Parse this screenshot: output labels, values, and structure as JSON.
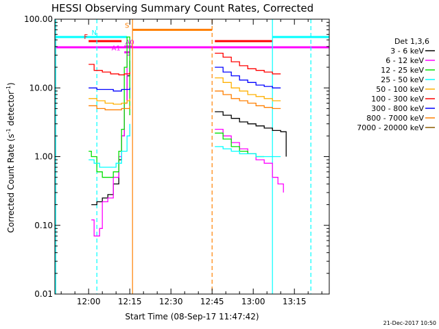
{
  "chart_data": {
    "type": "line",
    "title": "HESSI Observing Summary Count Rates, Corrected",
    "xlabel": "Start Time (08-Sep-17 11:47:42)",
    "ylabel_main": "Corrected Count Rate (s",
    "ylabel_sup1": "-1",
    "ylabel_mid": " detector",
    "ylabel_sup2": "-1",
    "ylabel_end": ")",
    "y_scale": "log",
    "ylim": [
      0.01,
      100
    ],
    "xlim": [
      "11:47:42",
      "13:27:42"
    ],
    "y_ticks": [
      "0.01",
      "0.10",
      "1.00",
      "10.00",
      "100.00"
    ],
    "x_ticks": [
      {
        "t": "12:00",
        "label": "12:00"
      },
      {
        "t": "12:15",
        "label": "12:15"
      },
      {
        "t": "12:30",
        "label": "12:30"
      },
      {
        "t": "12:45",
        "label": "12:45"
      },
      {
        "t": "13:00",
        "label": "13:00"
      },
      {
        "t": "13:15",
        "label": "13:15"
      }
    ],
    "legend_title": "Det 1,3,6",
    "legend_placement": "outside-right",
    "stamp": "21-Dec-2017 10:50",
    "series": [
      {
        "name": "3 - 6 keV",
        "color": "#000000",
        "seg1": [
          [
            "12:01",
            0.2
          ],
          [
            "12:03",
            0.22
          ],
          [
            "12:05",
            0.25
          ],
          [
            "12:07",
            0.28
          ],
          [
            "12:09",
            0.4
          ],
          [
            "12:11",
            0.9
          ],
          [
            "12:12",
            2.0
          ],
          [
            "12:13",
            6.0
          ],
          [
            "12:14",
            15.0
          ],
          [
            "12:15",
            25.0
          ]
        ],
        "seg2": [
          [
            "12:46",
            4.5
          ],
          [
            "12:49",
            4.0
          ],
          [
            "12:52",
            3.6
          ],
          [
            "12:55",
            3.2
          ],
          [
            "12:58",
            3.0
          ],
          [
            "13:01",
            2.8
          ],
          [
            "13:04",
            2.6
          ],
          [
            "13:07",
            2.4
          ],
          [
            "13:10",
            2.3
          ],
          [
            "13:12",
            1.0
          ]
        ]
      },
      {
        "name": "6 - 12 keV",
        "color": "#ff00ff",
        "seg1": [
          [
            "12:01",
            0.12
          ],
          [
            "12:02",
            0.07
          ],
          [
            "12:04",
            0.09
          ],
          [
            "12:05",
            0.22
          ],
          [
            "12:07",
            0.25
          ],
          [
            "12:09",
            0.5
          ],
          [
            "12:11",
            1.0
          ],
          [
            "12:12",
            2.0
          ],
          [
            "12:13",
            6.0
          ],
          [
            "12:14",
            30.0
          ],
          [
            "12:15",
            40.0
          ]
        ],
        "seg2": [
          [
            "12:46",
            2.5
          ],
          [
            "12:49",
            2.0
          ],
          [
            "12:52",
            1.6
          ],
          [
            "12:55",
            1.3
          ],
          [
            "12:58",
            1.1
          ],
          [
            "13:01",
            0.9
          ],
          [
            "13:04",
            0.8
          ],
          [
            "13:07",
            0.5
          ],
          [
            "13:09",
            0.4
          ],
          [
            "13:11",
            0.3
          ]
        ]
      },
      {
        "name": "12 - 25 keV",
        "color": "#00e000",
        "seg1": [
          [
            "12:00",
            1.2
          ],
          [
            "12:01",
            1.0
          ],
          [
            "12:03",
            0.6
          ],
          [
            "12:05",
            0.5
          ],
          [
            "12:07",
            0.5
          ],
          [
            "12:09",
            0.6
          ],
          [
            "12:11",
            1.2
          ],
          [
            "12:12",
            2.5
          ],
          [
            "12:13",
            20.0
          ],
          [
            "12:14",
            55.0
          ],
          [
            "12:15",
            4.0
          ]
        ],
        "seg2": [
          [
            "12:46",
            2.2
          ],
          [
            "12:49",
            1.8
          ],
          [
            "12:52",
            1.4
          ],
          [
            "12:55",
            1.2
          ],
          [
            "12:58",
            1.1
          ],
          [
            "13:01",
            1.0
          ],
          [
            "13:04",
            1.0
          ]
        ]
      },
      {
        "name": "25 - 50 keV",
        "color": "#00ffff",
        "seg1": [
          [
            "12:00",
            0.9
          ],
          [
            "12:02",
            0.8
          ],
          [
            "12:04",
            0.7
          ],
          [
            "12:06",
            0.7
          ],
          [
            "12:08",
            0.7
          ],
          [
            "12:10",
            0.8
          ],
          [
            "12:12",
            1.2
          ],
          [
            "12:14",
            2.0
          ],
          [
            "12:15",
            3.0
          ]
        ],
        "seg2": [
          [
            "12:46",
            1.4
          ],
          [
            "12:49",
            1.3
          ],
          [
            "12:52",
            1.2
          ],
          [
            "12:55",
            1.1
          ],
          [
            "12:58",
            1.1
          ],
          [
            "13:01",
            1.0
          ],
          [
            "13:04",
            1.0
          ],
          [
            "13:07",
            1.0
          ],
          [
            "13:10",
            1.0
          ]
        ]
      },
      {
        "name": "50 - 100 keV",
        "color": "#ffb000",
        "seg1": [
          [
            "12:00",
            7.0
          ],
          [
            "12:03",
            6.5
          ],
          [
            "12:06",
            6.0
          ],
          [
            "12:09",
            5.8
          ],
          [
            "12:12",
            6.0
          ],
          [
            "12:14",
            6.5
          ],
          [
            "12:15",
            7.0
          ]
        ],
        "seg2": [
          [
            "12:46",
            14.0
          ],
          [
            "12:49",
            12.0
          ],
          [
            "12:52",
            10.0
          ],
          [
            "12:55",
            9.0
          ],
          [
            "12:58",
            8.0
          ],
          [
            "13:01",
            7.5
          ],
          [
            "13:04",
            7.0
          ],
          [
            "13:07",
            6.5
          ],
          [
            "13:10",
            6.5
          ]
        ]
      },
      {
        "name": "100 - 300 keV",
        "color": "#ff0000",
        "seg1": [
          [
            "12:00",
            22.0
          ],
          [
            "12:02",
            18.0
          ],
          [
            "12:05",
            17.0
          ],
          [
            "12:08",
            16.0
          ],
          [
            "12:11",
            15.5
          ],
          [
            "12:13",
            16.0
          ],
          [
            "12:15",
            17.0
          ]
        ],
        "seg2": [
          [
            "12:46",
            32.0
          ],
          [
            "12:49",
            28.0
          ],
          [
            "12:52",
            24.0
          ],
          [
            "12:55",
            21.0
          ],
          [
            "12:58",
            19.0
          ],
          [
            "13:01",
            18.0
          ],
          [
            "13:04",
            17.0
          ],
          [
            "13:07",
            16.0
          ],
          [
            "13:10",
            16.0
          ]
        ]
      },
      {
        "name": "300 - 800 keV",
        "color": "#0000ff",
        "seg1": [
          [
            "12:00",
            10.0
          ],
          [
            "12:03",
            9.5
          ],
          [
            "12:06",
            9.5
          ],
          [
            "12:09",
            9.0
          ],
          [
            "12:12",
            9.5
          ],
          [
            "12:15",
            10.0
          ]
        ],
        "seg2": [
          [
            "12:46",
            20.0
          ],
          [
            "12:49",
            17.0
          ],
          [
            "12:52",
            15.0
          ],
          [
            "12:55",
            13.0
          ],
          [
            "12:58",
            12.0
          ],
          [
            "13:01",
            11.0
          ],
          [
            "13:04",
            10.5
          ],
          [
            "13:07",
            10.0
          ],
          [
            "13:10",
            10.0
          ]
        ]
      },
      {
        "name": "800 - 7000 keV",
        "color": "#ff7f00",
        "seg1": [
          [
            "12:00",
            5.5
          ],
          [
            "12:03",
            5.0
          ],
          [
            "12:06",
            4.8
          ],
          [
            "12:09",
            4.8
          ],
          [
            "12:12",
            5.0
          ],
          [
            "12:15",
            5.5
          ]
        ],
        "seg2": [
          [
            "12:46",
            9.0
          ],
          [
            "12:49",
            8.0
          ],
          [
            "12:52",
            7.0
          ],
          [
            "12:55",
            6.5
          ],
          [
            "12:58",
            6.0
          ],
          [
            "13:01",
            5.5
          ],
          [
            "13:04",
            5.2
          ],
          [
            "13:07",
            5.0
          ],
          [
            "13:10",
            5.0
          ]
        ]
      },
      {
        "name": "7000 - 20000 keV",
        "color": "#8b5a00",
        "seg1": [],
        "seg2": []
      }
    ],
    "flags": [
      {
        "label": "N",
        "color": "#00ffff",
        "y": 55.0,
        "spans": [
          [
            "11:47:42",
            "12:14"
          ],
          [
            "13:07",
            "13:27:42"
          ]
        ],
        "label_at": "12:02"
      },
      {
        "label": "F",
        "color": "#ff0000",
        "y": 48.0,
        "spans": [
          [
            "12:00",
            "12:12"
          ],
          [
            "12:46",
            "13:07"
          ]
        ],
        "label_at": "11:59"
      },
      {
        "label": "S",
        "color": "#ff8000",
        "y": 70.0,
        "spans": [
          [
            "12:16",
            "12:45"
          ]
        ],
        "label_at": "12:14"
      },
      {
        "label": "A0",
        "color": "#ff00ff",
        "y": 40.0,
        "spans": [
          [
            "12:13",
            "12:16"
          ]
        ],
        "label_at": "12:15"
      },
      {
        "label": "A1",
        "color": "#ff00ff",
        "y": 33.0,
        "spans": [
          [
            "12:13",
            "12:15"
          ]
        ],
        "label_at": "12:10"
      },
      {
        "label": "",
        "color": "#ff00ff",
        "y": 39.0,
        "spans": [
          [
            "11:47:42",
            "13:27:42"
          ]
        ],
        "label_at": ""
      }
    ],
    "vlines": [
      {
        "t": "12:03",
        "color": "#00ffff",
        "dash": true
      },
      {
        "t": "12:16",
        "color": "#ff8000",
        "dash": false
      },
      {
        "t": "12:45",
        "color": "#ff8000",
        "dash": true
      },
      {
        "t": "13:07",
        "color": "#00ffff",
        "dash": false
      },
      {
        "t": "13:21",
        "color": "#00ffff",
        "dash": true
      },
      {
        "t": "11:48",
        "color": "#00ffff",
        "dash": false
      }
    ]
  }
}
